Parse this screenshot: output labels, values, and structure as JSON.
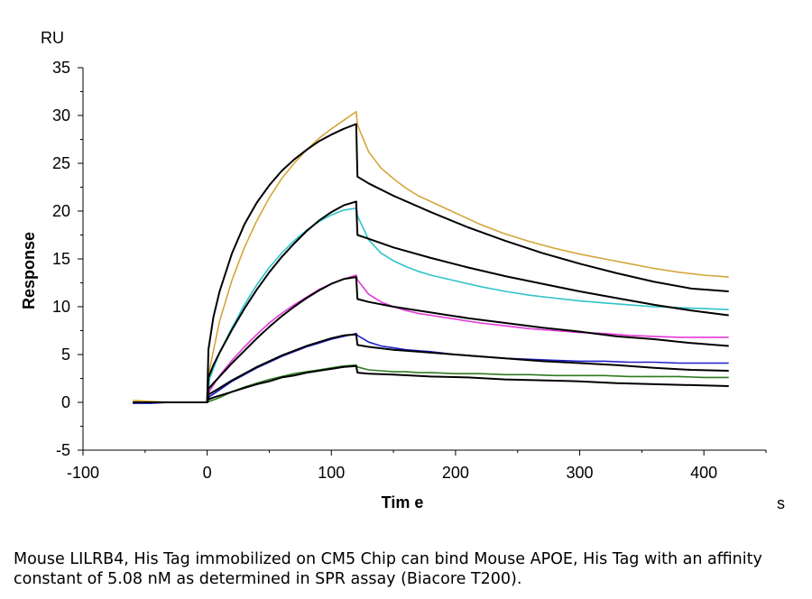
{
  "chart_data": {
    "type": "line",
    "xlabel": "Tim e",
    "ylabel": "Response",
    "x_unit": "s",
    "y_unit": "RU",
    "xlim": [
      -100,
      450
    ],
    "ylim": [
      -5,
      35
    ],
    "x_ticks": [
      -100,
      0,
      100,
      200,
      300,
      400
    ],
    "y_ticks": [
      -5,
      0,
      5,
      10,
      15,
      20,
      25,
      30,
      35
    ],
    "grid": false,
    "series": [
      {
        "color": "#D4A63A",
        "x": [
          -60,
          -45,
          -30,
          -15,
          0,
          2,
          10,
          20,
          30,
          40,
          50,
          60,
          70,
          80,
          90,
          100,
          110,
          120,
          121,
          130,
          140,
          150,
          160,
          170,
          180,
          200,
          220,
          240,
          260,
          280,
          300,
          320,
          340,
          360,
          380,
          400,
          420
        ],
        "values": [
          0.2,
          0.1,
          0,
          0,
          0,
          3.5,
          8.5,
          12.8,
          16.2,
          19,
          21.4,
          23.4,
          25,
          26.4,
          27.6,
          28.6,
          29.5,
          30.4,
          29,
          26.2,
          24.5,
          23.4,
          22.4,
          21.6,
          21,
          19.8,
          18.6,
          17.6,
          16.8,
          16.1,
          15.5,
          15,
          14.5,
          14,
          13.6,
          13.3,
          13.1
        ]
      },
      {
        "color": "#2EC4C9",
        "x": [
          -60,
          -45,
          -30,
          -15,
          0,
          2,
          10,
          20,
          30,
          40,
          50,
          60,
          70,
          80,
          90,
          100,
          110,
          120,
          121,
          130,
          140,
          150,
          160,
          170,
          180,
          200,
          220,
          240,
          260,
          280,
          300,
          320,
          340,
          360,
          380,
          400,
          420
        ],
        "values": [
          0,
          0,
          0,
          0,
          0,
          2.5,
          5.2,
          7.8,
          10.2,
          12.3,
          14.1,
          15.6,
          16.9,
          18,
          18.9,
          19.6,
          20.1,
          20.3,
          19.5,
          17,
          15.6,
          14.8,
          14.2,
          13.7,
          13.3,
          12.7,
          12.1,
          11.6,
          11.2,
          10.9,
          10.6,
          10.4,
          10.2,
          10,
          9.9,
          9.8,
          9.7
        ]
      },
      {
        "color": "#E23ADA",
        "x": [
          -60,
          -45,
          -30,
          -15,
          0,
          2,
          10,
          20,
          30,
          40,
          50,
          60,
          70,
          80,
          90,
          100,
          110,
          120,
          121,
          130,
          140,
          150,
          160,
          170,
          180,
          200,
          220,
          240,
          260,
          280,
          300,
          320,
          340,
          360,
          380,
          400,
          420
        ],
        "values": [
          0,
          0,
          0,
          0,
          0,
          1.2,
          2.8,
          4.4,
          5.8,
          7.1,
          8.3,
          9.3,
          10.2,
          11,
          11.8,
          12.4,
          12.9,
          13.3,
          12.8,
          11.3,
          10.5,
          10,
          9.6,
          9.3,
          9.1,
          8.7,
          8.3,
          8,
          7.7,
          7.5,
          7.3,
          7.2,
          7,
          6.9,
          6.8,
          6.8,
          6.8
        ]
      },
      {
        "color": "#1F1FCC",
        "x": [
          -60,
          -45,
          -30,
          -15,
          0,
          2,
          10,
          20,
          30,
          40,
          50,
          60,
          70,
          80,
          90,
          100,
          110,
          120,
          121,
          130,
          140,
          150,
          160,
          170,
          180,
          200,
          220,
          240,
          260,
          280,
          300,
          320,
          340,
          360,
          380,
          400,
          420
        ],
        "values": [
          -0.1,
          -0.1,
          0,
          0,
          0,
          0.6,
          1.3,
          2.2,
          2.9,
          3.6,
          4.2,
          4.8,
          5.3,
          5.8,
          6.2,
          6.6,
          6.9,
          7.2,
          7,
          6.3,
          5.9,
          5.7,
          5.5,
          5.4,
          5.3,
          5,
          4.8,
          4.6,
          4.5,
          4.4,
          4.3,
          4.3,
          4.2,
          4.2,
          4.1,
          4.1,
          4.1
        ]
      },
      {
        "color": "#2E7A1F",
        "x": [
          -60,
          -45,
          -30,
          -15,
          0,
          2,
          10,
          20,
          30,
          40,
          50,
          60,
          70,
          80,
          90,
          100,
          110,
          120,
          121,
          130,
          140,
          150,
          160,
          170,
          180,
          200,
          220,
          240,
          260,
          280,
          300,
          320,
          340,
          360,
          380,
          400,
          420
        ],
        "values": [
          0,
          0,
          0,
          0,
          0,
          0.1,
          0.5,
          1.1,
          1.6,
          2,
          2.4,
          2.7,
          3,
          3.2,
          3.4,
          3.6,
          3.8,
          3.9,
          3.7,
          3.4,
          3.3,
          3.2,
          3.2,
          3.1,
          3.1,
          3,
          3,
          2.9,
          2.9,
          2.8,
          2.8,
          2.8,
          2.7,
          2.7,
          2.7,
          2.6,
          2.6
        ]
      },
      {
        "color": "#000000",
        "x": [
          -60,
          0,
          1,
          5,
          10,
          20,
          30,
          40,
          50,
          60,
          70,
          80,
          90,
          100,
          110,
          120,
          121,
          130,
          150,
          180,
          210,
          240,
          270,
          300,
          330,
          360,
          390,
          420
        ],
        "values": [
          0,
          0,
          5.5,
          8.9,
          11.6,
          15.6,
          18.6,
          20.9,
          22.7,
          24.2,
          25.4,
          26.4,
          27.3,
          28,
          28.6,
          29.1,
          23.6,
          22.9,
          21.6,
          19.9,
          18.3,
          16.9,
          15.6,
          14.5,
          13.5,
          12.6,
          11.9,
          11.6
        ]
      },
      {
        "color": "#000000",
        "x": [
          -60,
          0,
          1,
          5,
          10,
          20,
          30,
          40,
          50,
          60,
          70,
          80,
          90,
          100,
          110,
          120,
          121,
          130,
          150,
          180,
          210,
          240,
          270,
          300,
          330,
          360,
          390,
          420
        ],
        "values": [
          0,
          0,
          2.6,
          3.9,
          5.2,
          7.6,
          9.8,
          11.8,
          13.6,
          15.2,
          16.6,
          17.9,
          19,
          19.9,
          20.6,
          21,
          17.5,
          17.1,
          16.2,
          15.1,
          14.1,
          13.2,
          12.4,
          11.6,
          10.9,
          10.2,
          9.6,
          9.1
        ]
      },
      {
        "color": "#000000",
        "x": [
          -60,
          0,
          1,
          5,
          10,
          20,
          30,
          40,
          50,
          60,
          70,
          80,
          90,
          100,
          110,
          120,
          121,
          130,
          150,
          180,
          210,
          240,
          270,
          300,
          330,
          360,
          390,
          420
        ],
        "values": [
          0,
          0,
          1.4,
          2,
          2.7,
          4.1,
          5.4,
          6.7,
          7.9,
          9,
          10,
          10.9,
          11.7,
          12.4,
          12.9,
          13.1,
          10.8,
          10.5,
          10,
          9.4,
          8.8,
          8.3,
          7.8,
          7.4,
          6.9,
          6.6,
          6.2,
          5.9
        ]
      },
      {
        "color": "#000000",
        "x": [
          -60,
          0,
          1,
          5,
          10,
          20,
          30,
          40,
          50,
          60,
          70,
          80,
          90,
          100,
          110,
          120,
          121,
          130,
          150,
          180,
          210,
          240,
          270,
          300,
          330,
          360,
          390,
          420
        ],
        "values": [
          0,
          0,
          0.8,
          1.1,
          1.5,
          2.3,
          3,
          3.7,
          4.3,
          4.9,
          5.4,
          5.9,
          6.3,
          6.7,
          7,
          7.1,
          6,
          5.8,
          5.5,
          5.2,
          4.9,
          4.6,
          4.3,
          4.1,
          3.9,
          3.6,
          3.4,
          3.3
        ]
      },
      {
        "color": "#000000",
        "x": [
          -60,
          0,
          1,
          5,
          10,
          20,
          30,
          40,
          50,
          60,
          70,
          80,
          90,
          100,
          110,
          120,
          121,
          130,
          150,
          180,
          210,
          240,
          270,
          300,
          330,
          360,
          390,
          420
        ],
        "values": [
          0,
          0,
          0.3,
          0.5,
          0.7,
          1.1,
          1.5,
          1.9,
          2.2,
          2.6,
          2.8,
          3.1,
          3.3,
          3.5,
          3.7,
          3.8,
          3.1,
          3,
          2.9,
          2.7,
          2.6,
          2.4,
          2.3,
          2.2,
          2,
          1.9,
          1.8,
          1.7
        ]
      }
    ]
  },
  "caption": "Mouse LILRB4, His Tag immobilized on CM5 Chip can bind Mouse APOE, His Tag with an affinity constant of 5.08 nM as determined in SPR assay (Biacore T200)."
}
